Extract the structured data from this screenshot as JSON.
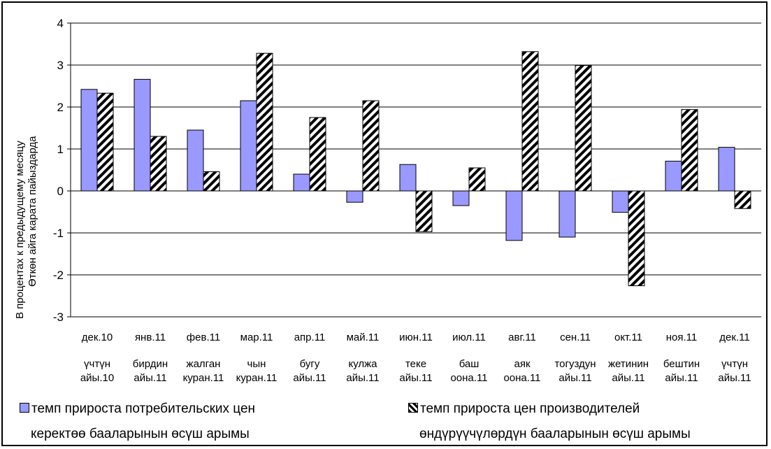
{
  "chart_data": {
    "type": "bar",
    "categories": [
      "дек.10",
      "янв.11",
      "фев.11",
      "мар.11",
      "апр.11",
      "май.11",
      "июн.11",
      "июл.11",
      "авг.11",
      "сен.11",
      "окт.11",
      "ноя.11",
      "дек.11"
    ],
    "categories_ky": [
      "үчтүн айы.10",
      "бирдин айы.11",
      "жалган куран.11",
      "чын куран.11",
      "бугу айы.11",
      "кулжа айы.11",
      "теке айы.11",
      "баш оона.11",
      "аяк оона.11",
      "тогуздун айы.11",
      "жетинин айы.11",
      "бештин айы.11",
      "үчтүн айы.11"
    ],
    "series": [
      {
        "name": "темп прироста потребительских цен",
        "name_ky": "керектөө бааларынын өсүш арымы",
        "color": "#9999ff",
        "pattern": "solid",
        "values": [
          2.42,
          2.66,
          1.45,
          2.15,
          0.4,
          -0.27,
          0.63,
          -0.35,
          -1.18,
          -1.1,
          -0.51,
          0.71,
          1.04
        ]
      },
      {
        "name": "темп прироста цен производителей",
        "name_ky": "өндүрүүчүлөрдүн бааларынын өсүш арымы",
        "color": "#000000",
        "pattern": "diagonal-stripes",
        "values": [
          2.33,
          1.3,
          0.46,
          3.28,
          1.75,
          2.15,
          -0.97,
          0.55,
          3.32,
          2.99,
          -2.26,
          1.94,
          -0.42
        ]
      }
    ],
    "ylabel": "В процентах к предыдущему месяцу",
    "ylabel_ky": "Өткөн айга карата пайыздарда",
    "ylim": [
      -3,
      4
    ],
    "yticks": [
      4,
      3,
      2,
      1,
      0,
      -1,
      -2,
      -3
    ],
    "grid": true,
    "legend_position": "bottom"
  }
}
